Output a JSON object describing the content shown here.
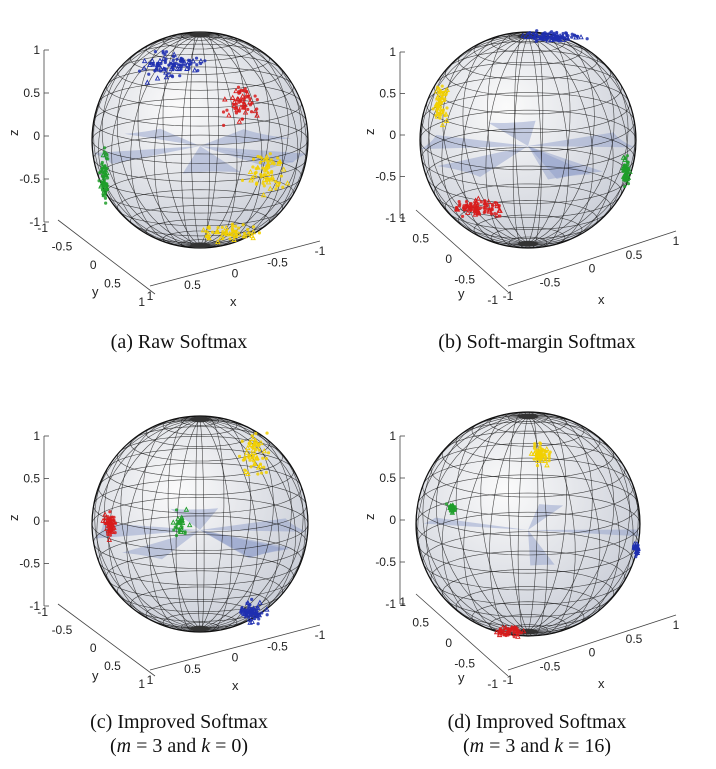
{
  "panels": [
    {
      "caption": "(a) Raw Softmax",
      "caption_line2": "",
      "z_ticks": [
        "1",
        "0.5",
        "0",
        "-0.5",
        "-1"
      ],
      "y_ticks": [
        "-1",
        "-0.5",
        "0",
        "0.5",
        "1"
      ],
      "x_ticks": [
        "1",
        "0.5",
        "0",
        "-0.5",
        "-1"
      ],
      "axis_labels": {
        "x": "x",
        "y": "y",
        "z": "z"
      }
    },
    {
      "caption": "(b) Soft-margin Softmax",
      "caption_line2": "",
      "z_ticks": [
        "1",
        "0.5",
        "0",
        "-0.5",
        "-1"
      ],
      "y_ticks": [
        "1",
        "0.5",
        "0",
        "-0.5",
        "-1"
      ],
      "x_ticks": [
        "-1",
        "-0.5",
        "0",
        "0.5",
        "1"
      ],
      "axis_labels": {
        "x": "x",
        "y": "y",
        "z": "z"
      }
    },
    {
      "caption": "(c) Improved Softmax",
      "caption_line2": "(m = 3 and k = 0)",
      "z_ticks": [
        "1",
        "0.5",
        "0",
        "-0.5",
        "-1"
      ],
      "y_ticks": [
        "-1",
        "-0.5",
        "0",
        "0.5",
        "1"
      ],
      "x_ticks": [
        "1",
        "0.5",
        "0",
        "-0.5",
        "-1"
      ],
      "axis_labels": {
        "x": "x",
        "y": "y",
        "z": "z"
      }
    },
    {
      "caption": "(d) Improved Softmax",
      "caption_line2": "(m = 3 and k = 16)",
      "z_ticks": [
        "1",
        "0.5",
        "0",
        "-0.5",
        "-1"
      ],
      "y_ticks": [
        "1",
        "0.5",
        "0",
        "-0.5",
        "-1"
      ],
      "x_ticks": [
        "-1",
        "-0.5",
        "0",
        "0.5",
        "1"
      ],
      "axis_labels": {
        "x": "x",
        "y": "y",
        "z": "z"
      }
    }
  ],
  "colors": {
    "class1": "#1f2fb0",
    "class2": "#d81c1c",
    "class3": "#f2d000",
    "class4": "#1e9e2a",
    "wireframe": "#111111",
    "sector": "#8a98c8"
  },
  "chart_data": [
    {
      "type": "scatter",
      "title": "(a) Raw Softmax",
      "xlabel": "x",
      "ylabel": "y",
      "zlabel": "z",
      "xlim": [
        -1,
        1
      ],
      "ylim": [
        -1,
        1
      ],
      "zlim": [
        -1,
        1
      ],
      "series_colors": [
        "blue",
        "red",
        "yellow",
        "green"
      ],
      "series_regions": [
        {
          "color": "blue",
          "x": [
            -0.2,
            0.3
          ],
          "y": [
            -0.8,
            -0.2
          ],
          "z": [
            0.5,
            0.95
          ]
        },
        {
          "color": "red",
          "x": [
            -0.8,
            -0.4
          ],
          "y": [
            -0.3,
            0.2
          ],
          "z": [
            0.1,
            0.6
          ]
        },
        {
          "color": "yellow",
          "x": [
            -0.6,
            0.2
          ],
          "y": [
            0.3,
            0.9
          ],
          "z": [
            -0.9,
            -0.3
          ]
        },
        {
          "color": "green",
          "x": [
            0.4,
            0.9
          ],
          "y": [
            -0.9,
            -0.6
          ],
          "z": [
            -0.8,
            -0.2
          ]
        }
      ]
    },
    {
      "type": "scatter",
      "title": "(b) Soft-margin Softmax",
      "xlabel": "x",
      "ylabel": "y",
      "zlabel": "z",
      "xlim": [
        -1,
        1
      ],
      "ylim": [
        -1,
        1
      ],
      "zlim": [
        -1,
        1
      ],
      "series_colors": [
        "blue",
        "red",
        "yellow",
        "green"
      ],
      "series_regions": [
        {
          "color": "blue",
          "z": [
            0.85,
            1.0
          ]
        },
        {
          "color": "red",
          "z": [
            -0.8,
            -0.5
          ]
        },
        {
          "color": "yellow",
          "z": [
            -0.1,
            0.5
          ]
        },
        {
          "color": "green",
          "z": [
            -0.6,
            -0.1
          ]
        }
      ]
    },
    {
      "type": "scatter",
      "title": "(c) Improved Softmax",
      "subtitle": "(m = 3 and k = 0)",
      "xlabel": "x",
      "ylabel": "y",
      "zlabel": "z",
      "xlim": [
        -1,
        1
      ],
      "ylim": [
        -1,
        1
      ],
      "zlim": [
        -1,
        1
      ],
      "series_colors": [
        "blue",
        "red",
        "yellow",
        "green"
      ],
      "series_regions": [
        {
          "color": "yellow",
          "z": [
            0.6,
            1.0
          ]
        },
        {
          "color": "red",
          "z": [
            -0.6,
            -0.1
          ]
        },
        {
          "color": "green",
          "z": [
            -0.5,
            -0.1
          ]
        },
        {
          "color": "blue",
          "z": [
            -0.9,
            -0.5
          ]
        }
      ]
    },
    {
      "type": "scatter",
      "title": "(d) Improved Softmax",
      "subtitle": "(m = 3 and k = 16)",
      "xlabel": "x",
      "ylabel": "y",
      "zlabel": "z",
      "xlim": [
        -1,
        1
      ],
      "ylim": [
        -1,
        1
      ],
      "zlim": [
        -1,
        1
      ],
      "series_colors": [
        "blue",
        "red",
        "yellow",
        "green"
      ],
      "series_regions": [
        {
          "color": "yellow",
          "z": [
            0.6,
            0.9
          ]
        },
        {
          "color": "green",
          "z": [
            0.1,
            0.3
          ]
        },
        {
          "color": "blue",
          "z": [
            -0.3,
            0.0
          ]
        },
        {
          "color": "red",
          "z": [
            -1.0,
            -0.8
          ]
        }
      ]
    }
  ]
}
